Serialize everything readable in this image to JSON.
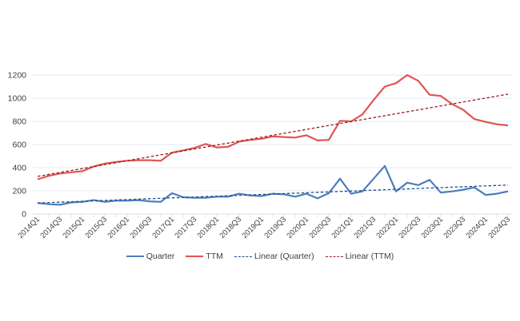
{
  "chart_data": {
    "type": "line",
    "title": "",
    "xlabel": "",
    "ylabel": "",
    "ylim": [
      0,
      1200
    ],
    "yticks": [
      "0",
      "200",
      "400",
      "600",
      "800",
      "1000",
      "1200"
    ],
    "grid": true,
    "legend_position": "bottom",
    "x": [
      "2014Q1",
      "2014Q2",
      "2014Q3",
      "2014Q4",
      "2015Q1",
      "2015Q2",
      "2015Q3",
      "2015Q4",
      "2016Q1",
      "2016Q2",
      "2016Q3",
      "2016Q4",
      "2017Q1",
      "2017Q2",
      "2017Q3",
      "2017Q4",
      "2018Q1",
      "2018Q2",
      "2018Q3",
      "2018Q4",
      "2019Q1",
      "2019Q2",
      "2019Q3",
      "2019Q4",
      "2020Q1",
      "2020Q2",
      "2020Q3",
      "2020Q4",
      "2021Q1",
      "2021Q2",
      "2021Q3",
      "2021Q4",
      "2022Q1",
      "2022Q2",
      "2022Q3",
      "2022Q4",
      "2023Q1",
      "2023Q2",
      "2023Q3",
      "2023Q4",
      "2024Q1",
      "2024Q2",
      "2024Q3"
    ],
    "xtick_labels": [
      "2014Q1",
      "2014Q3",
      "2015Q1",
      "2015Q3",
      "2016Q1",
      "2016Q3",
      "2017Q1",
      "2017Q3",
      "2018Q1",
      "2018Q3",
      "2019Q1",
      "2019Q3",
      "2020Q1",
      "2020Q3",
      "2021Q1",
      "2021Q3",
      "2022Q1",
      "2022Q3",
      "2023Q1",
      "2023Q3",
      "2024Q1",
      "2024Q3"
    ],
    "series": [
      {
        "name": "Quarter",
        "color": "#4a7ebb",
        "style": "solid",
        "values": [
          95,
          85,
          80,
          100,
          105,
          120,
          105,
          115,
          115,
          120,
          110,
          105,
          180,
          145,
          140,
          140,
          150,
          150,
          175,
          160,
          155,
          175,
          170,
          150,
          175,
          135,
          180,
          305,
          175,
          195,
          305,
          415,
          195,
          270,
          250,
          295,
          185,
          195,
          210,
          230,
          165,
          175,
          195
        ]
      },
      {
        "name": "TTM",
        "color": "#e05555",
        "style": "solid",
        "values": [
          300,
          330,
          350,
          360,
          370,
          410,
          435,
          450,
          460,
          465,
          465,
          460,
          530,
          550,
          570,
          605,
          575,
          580,
          625,
          640,
          650,
          670,
          665,
          660,
          680,
          635,
          640,
          805,
          800,
          860,
          985,
          1100,
          1130,
          1200,
          1150,
          1030,
          1020,
          950,
          900,
          820,
          795,
          775,
          765
        ]
      },
      {
        "name": "Linear (Quarter)",
        "color": "#1f4e8c",
        "style": "dashed",
        "trend_start": 95,
        "trend_end": 250
      },
      {
        "name": "Linear (TTM)",
        "color": "#9b1c1c",
        "style": "dashed",
        "trend_start": 325,
        "trend_end": 1035
      }
    ]
  }
}
